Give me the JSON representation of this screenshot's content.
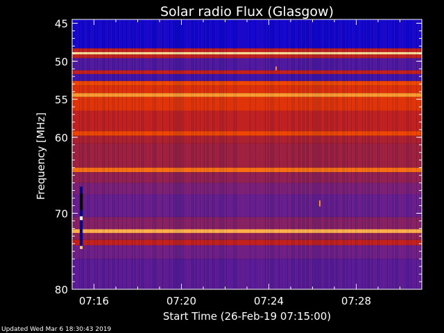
{
  "footer_text": "Updated Wed Mar  6 18:30:43 2019",
  "colors": {
    "background": "#000000",
    "axis": "#ffffff",
    "text": "#ffffff",
    "colormap": [
      "#0000e6",
      "#3c14b4",
      "#6e1e8c",
      "#a01e3c",
      "#d21e14",
      "#f04600",
      "#ff8c1e",
      "#ffd26e",
      "#ffffe6"
    ]
  },
  "chart_data": {
    "type": "heatmap",
    "title": "Solar radio Flux (Glasgow)",
    "xlabel": "Start Time (26-Feb-19 07:15:00)",
    "ylabel": "Frequency [MHz]",
    "xlim": [
      "07:15:00",
      "07:31:00"
    ],
    "ylim": [
      80,
      44.5
    ],
    "x_ticks": [
      "07:16",
      "07:20",
      "07:24",
      "07:28"
    ],
    "y_ticks": [
      45,
      50,
      55,
      60,
      70,
      80
    ],
    "colormap_name": "heat",
    "frequency_bands": [
      {
        "from_mhz": 44.5,
        "to_mhz": 48.3,
        "level": 0.03
      },
      {
        "from_mhz": 48.3,
        "to_mhz": 48.8,
        "level": 0.45
      },
      {
        "from_mhz": 48.8,
        "to_mhz": 49.1,
        "level": 0.92
      },
      {
        "from_mhz": 49.1,
        "to_mhz": 49.6,
        "level": 0.45
      },
      {
        "from_mhz": 49.6,
        "to_mhz": 51.2,
        "level": 0.16
      },
      {
        "from_mhz": 51.2,
        "to_mhz": 51.7,
        "level": 0.46
      },
      {
        "from_mhz": 51.7,
        "to_mhz": 52.6,
        "level": 0.12
      },
      {
        "from_mhz": 52.6,
        "to_mhz": 53.2,
        "level": 0.62
      },
      {
        "from_mhz": 53.2,
        "to_mhz": 54.2,
        "level": 0.55
      },
      {
        "from_mhz": 54.2,
        "to_mhz": 54.7,
        "level": 0.78
      },
      {
        "from_mhz": 54.7,
        "to_mhz": 56.5,
        "level": 0.56
      },
      {
        "from_mhz": 56.5,
        "to_mhz": 59.2,
        "level": 0.45
      },
      {
        "from_mhz": 59.2,
        "to_mhz": 59.8,
        "level": 0.62
      },
      {
        "from_mhz": 59.8,
        "to_mhz": 60.8,
        "level": 0.4
      },
      {
        "from_mhz": 60.8,
        "to_mhz": 64.0,
        "level": 0.36
      },
      {
        "from_mhz": 64.0,
        "to_mhz": 64.6,
        "level": 0.7
      },
      {
        "from_mhz": 64.6,
        "to_mhz": 66.0,
        "level": 0.33
      },
      {
        "from_mhz": 66.0,
        "to_mhz": 67.5,
        "level": 0.27
      },
      {
        "from_mhz": 67.5,
        "to_mhz": 70.5,
        "level": 0.22
      },
      {
        "from_mhz": 70.5,
        "to_mhz": 72.1,
        "level": 0.3
      },
      {
        "from_mhz": 72.1,
        "to_mhz": 72.6,
        "level": 0.82
      },
      {
        "from_mhz": 72.6,
        "to_mhz": 73.5,
        "level": 0.32
      },
      {
        "from_mhz": 73.5,
        "to_mhz": 74.2,
        "level": 0.46
      },
      {
        "from_mhz": 74.2,
        "to_mhz": 76.0,
        "level": 0.24
      },
      {
        "from_mhz": 76.0,
        "to_mhz": 80.0,
        "level": 0.19
      }
    ],
    "features": [
      {
        "kind": "burst",
        "time": "07:15:25",
        "from_mhz": 66.5,
        "to_mhz": 74.7
      },
      {
        "kind": "spot",
        "time": "07:24:20",
        "from_mhz": 50.7,
        "to_mhz": 51.2
      },
      {
        "kind": "spot",
        "time": "07:26:20",
        "from_mhz": 68.3,
        "to_mhz": 69.1
      }
    ]
  }
}
